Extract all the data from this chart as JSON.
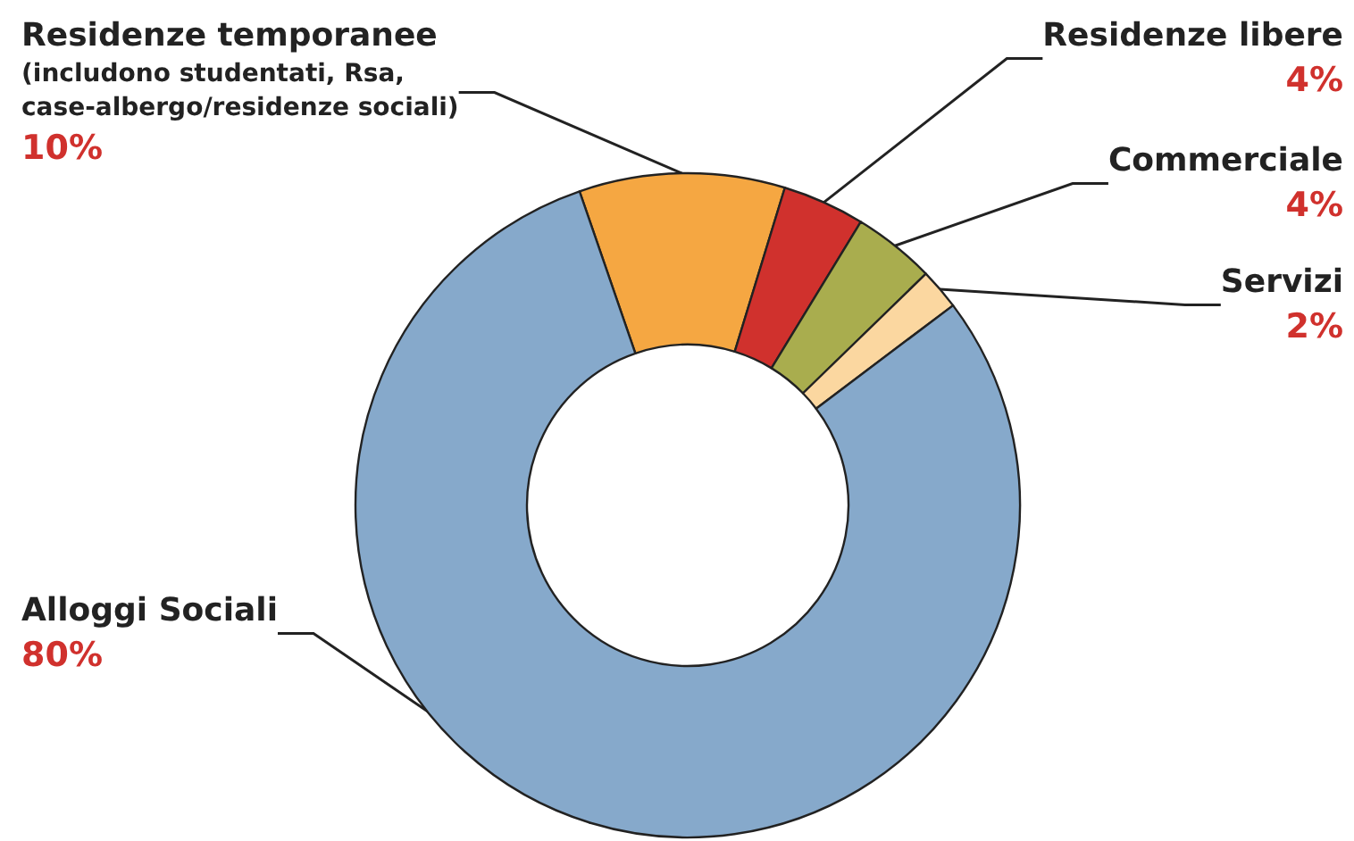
{
  "chart_data": {
    "type": "donut",
    "categories": [
      "Residenze temporanee\n(includono studentati, Rsa,\ncase-albergo/residenze sociali)",
      "Residenze libere",
      "Commerciale",
      "Servizi",
      "Alloggi Sociali"
    ],
    "values": [
      10,
      4,
      4,
      2,
      80
    ],
    "value_labels": [
      "10%",
      "4%",
      "4%",
      "2%",
      "80%"
    ],
    "colors": [
      "#f5a742",
      "#d0312d",
      "#a9ad4e",
      "#fbd7a0",
      "#86a9cb"
    ],
    "legend": false
  }
}
